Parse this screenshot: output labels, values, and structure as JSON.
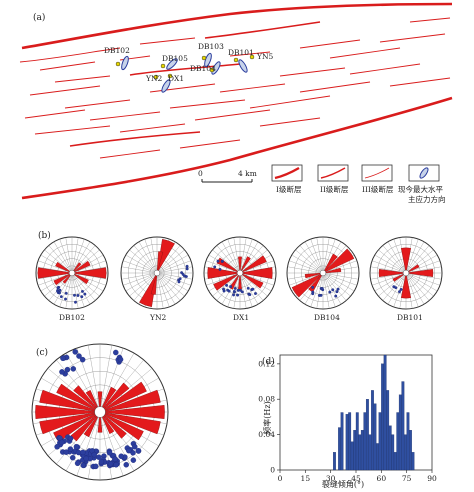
{
  "panel_a": {
    "label": "(a)",
    "stations": [
      {
        "id": "DB102",
        "label": "DB102"
      },
      {
        "id": "DB105",
        "label": "DB105"
      },
      {
        "id": "DB103",
        "label": "DB103"
      },
      {
        "id": "DB101",
        "label": "DB101"
      },
      {
        "id": "DB104",
        "label": "DB104"
      },
      {
        "id": "YN5",
        "label": "YN5"
      },
      {
        "id": "YN2",
        "label": "YN2"
      },
      {
        "id": "DX1",
        "label": "DX1"
      }
    ],
    "scale": {
      "zero": "0",
      "length": "4 km"
    },
    "legend": [
      {
        "label": "I级断层"
      },
      {
        "label": "II级断层"
      },
      {
        "label": "III级断层"
      },
      {
        "label": "现今最大水平",
        "label2": "主应力方向"
      }
    ]
  },
  "panel_b": {
    "label": "(b)",
    "stereonets": [
      {
        "name": "DB102"
      },
      {
        "name": "YN2"
      },
      {
        "name": "DX1"
      },
      {
        "name": "DB104"
      },
      {
        "name": "DB101"
      }
    ]
  },
  "panel_c": {
    "label": "(c)"
  },
  "panel_d": {
    "label": "(d)"
  },
  "chart_data": {
    "type": "bar",
    "xlabel": "裂缝倾角(°)",
    "ylabel": "频率(Hz)",
    "xlim": [
      0,
      90
    ],
    "ylim": [
      0,
      0.13
    ],
    "x_ticks": [
      0,
      15,
      30,
      45,
      60,
      75,
      90
    ],
    "y_ticks": [
      0,
      0.04,
      0.08,
      0.12
    ],
    "x_tick_labels": [
      "0",
      "15",
      "30",
      "45",
      "60",
      "75",
      "90"
    ],
    "y_tick_labels": [
      "0",
      "0.04",
      "0.08",
      "0.12"
    ],
    "bin_width": 1.5,
    "bins_start": [
      31.5,
      33,
      34.5,
      36,
      37.5,
      39,
      40.5,
      42,
      43.5,
      45,
      46.5,
      48,
      49.5,
      51,
      52.5,
      54,
      55.5,
      57,
      58.5,
      60,
      61.5,
      63,
      64.5,
      66,
      67.5,
      69,
      70.5,
      72,
      73.5,
      75,
      76.5,
      78
    ],
    "values": [
      0.02,
      0,
      0.048,
      0.065,
      0,
      0.063,
      0.065,
      0.032,
      0.045,
      0.065,
      0.04,
      0.045,
      0.065,
      0.08,
      0.04,
      0.09,
      0.075,
      0.03,
      0.065,
      0.12,
      0.13,
      0.09,
      0.05,
      0.04,
      0.02,
      0.065,
      0.085,
      0.1,
      0.04,
      0.065,
      0.045,
      0.02
    ],
    "bar_color": "#2f4fa0"
  },
  "colors": {
    "fault": "#d91c1c",
    "rose": "#e31a1c",
    "point": "#2c3e9e",
    "grid": "#555555",
    "station_dot": "#e8d800"
  }
}
